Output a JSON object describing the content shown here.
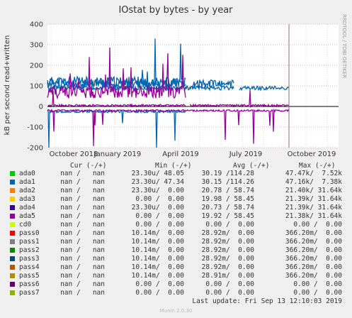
{
  "chart_data": {
    "type": "line",
    "title": "IOstat by bytes - by year",
    "ylabel": "kB per second read+written",
    "side_label": "RRDTOOL / TOBI OETIKER",
    "ylim": [
      -200,
      400
    ],
    "yticks": [
      "400",
      "300",
      "200",
      "100",
      "0",
      "-100",
      "-200"
    ],
    "xticks": [
      "October 2018",
      "January 2019",
      "April 2019",
      "July 2019",
      "October 2019"
    ],
    "series": [
      {
        "name": "ada0",
        "color": "#00cc00"
      },
      {
        "name": "ada1",
        "color": "#0066b3"
      },
      {
        "name": "ada2",
        "color": "#ff8000"
      },
      {
        "name": "ada3",
        "color": "#ffcc00"
      },
      {
        "name": "ada4",
        "color": "#330099"
      },
      {
        "name": "ada5",
        "color": "#990099"
      },
      {
        "name": "cd0",
        "color": "#ccff00"
      },
      {
        "name": "pass0",
        "color": "#ff0000"
      },
      {
        "name": "pass1",
        "color": "#808080"
      },
      {
        "name": "pass2",
        "color": "#008f00"
      },
      {
        "name": "pass3",
        "color": "#00487d"
      },
      {
        "name": "pass4",
        "color": "#b35a00"
      },
      {
        "name": "pass5",
        "color": "#b38f00"
      },
      {
        "name": "pass6",
        "color": "#6b006b"
      },
      {
        "name": "pass7",
        "color": "#8fb300"
      }
    ]
  },
  "legend": {
    "headers": {
      "cur": "Cur (-/+)",
      "min": "Min (-/+)",
      "avg": "Avg (-/+)",
      "max": "Max (-/+)"
    },
    "rows": [
      {
        "name": "ada0",
        "cur": "nan /   nan",
        "min": "23.30u/ 48.05",
        "avg": "30.19 /114.28",
        "max": "47.47k/  7.52k"
      },
      {
        "name": "ada1",
        "cur": "nan /   nan",
        "min": "23.30u/ 47.34",
        "avg": "30.15 /114.26",
        "max": "47.16k/  7.38k"
      },
      {
        "name": "ada2",
        "cur": "nan /   nan",
        "min": "23.30u/  0.00",
        "avg": "20.78 / 58.74",
        "max": "21.40k/ 31.64k"
      },
      {
        "name": "ada3",
        "cur": "nan /   nan",
        "min": " 0.00 /  0.00",
        "avg": "19.98 / 58.45",
        "max": "21.39k/ 31.64k"
      },
      {
        "name": "ada4",
        "cur": "nan /   nan",
        "min": "23.30u/  0.00",
        "avg": "20.73 / 58.74",
        "max": "21.39k/ 31.64k"
      },
      {
        "name": "ada5",
        "cur": "nan /   nan",
        "min": " 0.00 /  0.00",
        "avg": "19.92 / 58.45",
        "max": "21.38k/ 31.64k"
      },
      {
        "name": "cd0",
        "cur": "nan /   nan",
        "min": " 0.00 /  0.00",
        "avg": " 0.00 /  0.00",
        "max": "  0.00 /  0.00"
      },
      {
        "name": "pass0",
        "cur": "nan /   nan",
        "min": "10.14m/  0.00",
        "avg": "28.92m/  0.00",
        "max": "366.20m/  0.00"
      },
      {
        "name": "pass1",
        "cur": "nan /   nan",
        "min": "10.14m/  0.00",
        "avg": "28.92m/  0.00",
        "max": "366.20m/  0.00"
      },
      {
        "name": "pass2",
        "cur": "nan /   nan",
        "min": "10.14m/  0.00",
        "avg": "28.92m/  0.00",
        "max": "366.20m/  0.00"
      },
      {
        "name": "pass3",
        "cur": "nan /   nan",
        "min": "10.14m/  0.00",
        "avg": "28.92m/  0.00",
        "max": "366.20m/  0.00"
      },
      {
        "name": "pass4",
        "cur": "nan /   nan",
        "min": "10.14m/  0.00",
        "avg": "28.92m/  0.00",
        "max": "366.20m/  0.00"
      },
      {
        "name": "pass5",
        "cur": "nan /   nan",
        "min": "10.14m/  0.00",
        "avg": "28.91m/  0.00",
        "max": "366.20m/  0.00"
      },
      {
        "name": "pass6",
        "cur": "nan /   nan",
        "min": " 0.00 /  0.00",
        "avg": " 0.00 /  0.00",
        "max": "  0.00 /  0.00"
      },
      {
        "name": "pass7",
        "cur": "nan /   nan",
        "min": " 0.00 /  0.00",
        "avg": " 0.00 /  0.00",
        "max": "  0.00 /  0.00"
      }
    ]
  },
  "footer": {
    "last_update": "Last update:  Fri Sep 13 12:10:03 2019",
    "munin": "Munin 2.0.30"
  }
}
